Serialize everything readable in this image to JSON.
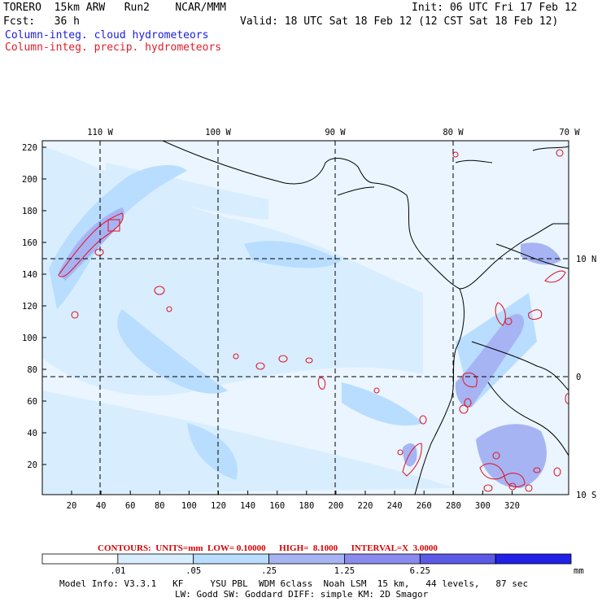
{
  "header": {
    "model_line": "TORERO  15km ARW   Run2    NCAR/MMM",
    "init": "Init: 06 UTC Fri 17 Feb 12",
    "fcst": "Fcst:   36 h",
    "valid": "Valid: 18 UTC Sat 18 Feb 12 (12 CST Sat 18 Feb 12)",
    "field_cloud": "Column-integ. cloud hydrometeors",
    "field_precip": "Column-integ. precip. hydrometeors"
  },
  "axes": {
    "top_labels": [
      "110 W",
      "100 W",
      "90 W",
      "80 W",
      "70 W"
    ],
    "right_labels": [
      "10 N",
      "0",
      "10 S"
    ],
    "left_ticks": [
      "220",
      "200",
      "180",
      "160",
      "140",
      "120",
      "100",
      "80",
      "60",
      "40",
      "20"
    ],
    "bottom_ticks": [
      "20",
      "40",
      "60",
      "80",
      "100",
      "120",
      "140",
      "160",
      "180",
      "200",
      "220",
      "240",
      "260",
      "280",
      "300",
      "320"
    ]
  },
  "contours_line": "CONTOURS:  UNITS=mm  LOW= 0.10000      HIGH=  8.1000      INTERVAL=X  3.0000",
  "colorbar": {
    "labels": [
      ".01",
      ".05",
      ".25",
      "1.25",
      "6.25"
    ],
    "unit": "mm",
    "colors": [
      "#ffffff",
      "#d8eeff",
      "#b8ddff",
      "#a6b4f4",
      "#8a8aee",
      "#5a5ae6",
      "#2020e6"
    ]
  },
  "footer": {
    "line1": "Model Info: V3.3.1   KF     YSU PBL  WDM 6class  Noah LSM  15 km,   44 levels,   87 sec",
    "line2": "LW: Godd SW: Goddard DIFF: simple KM: 2D Smagor"
  },
  "colors": {
    "land": "#000000",
    "precip": "#e01c2c",
    "cloud_light": "#d8eeff",
    "cloud_mid": "#a6b4f4"
  }
}
